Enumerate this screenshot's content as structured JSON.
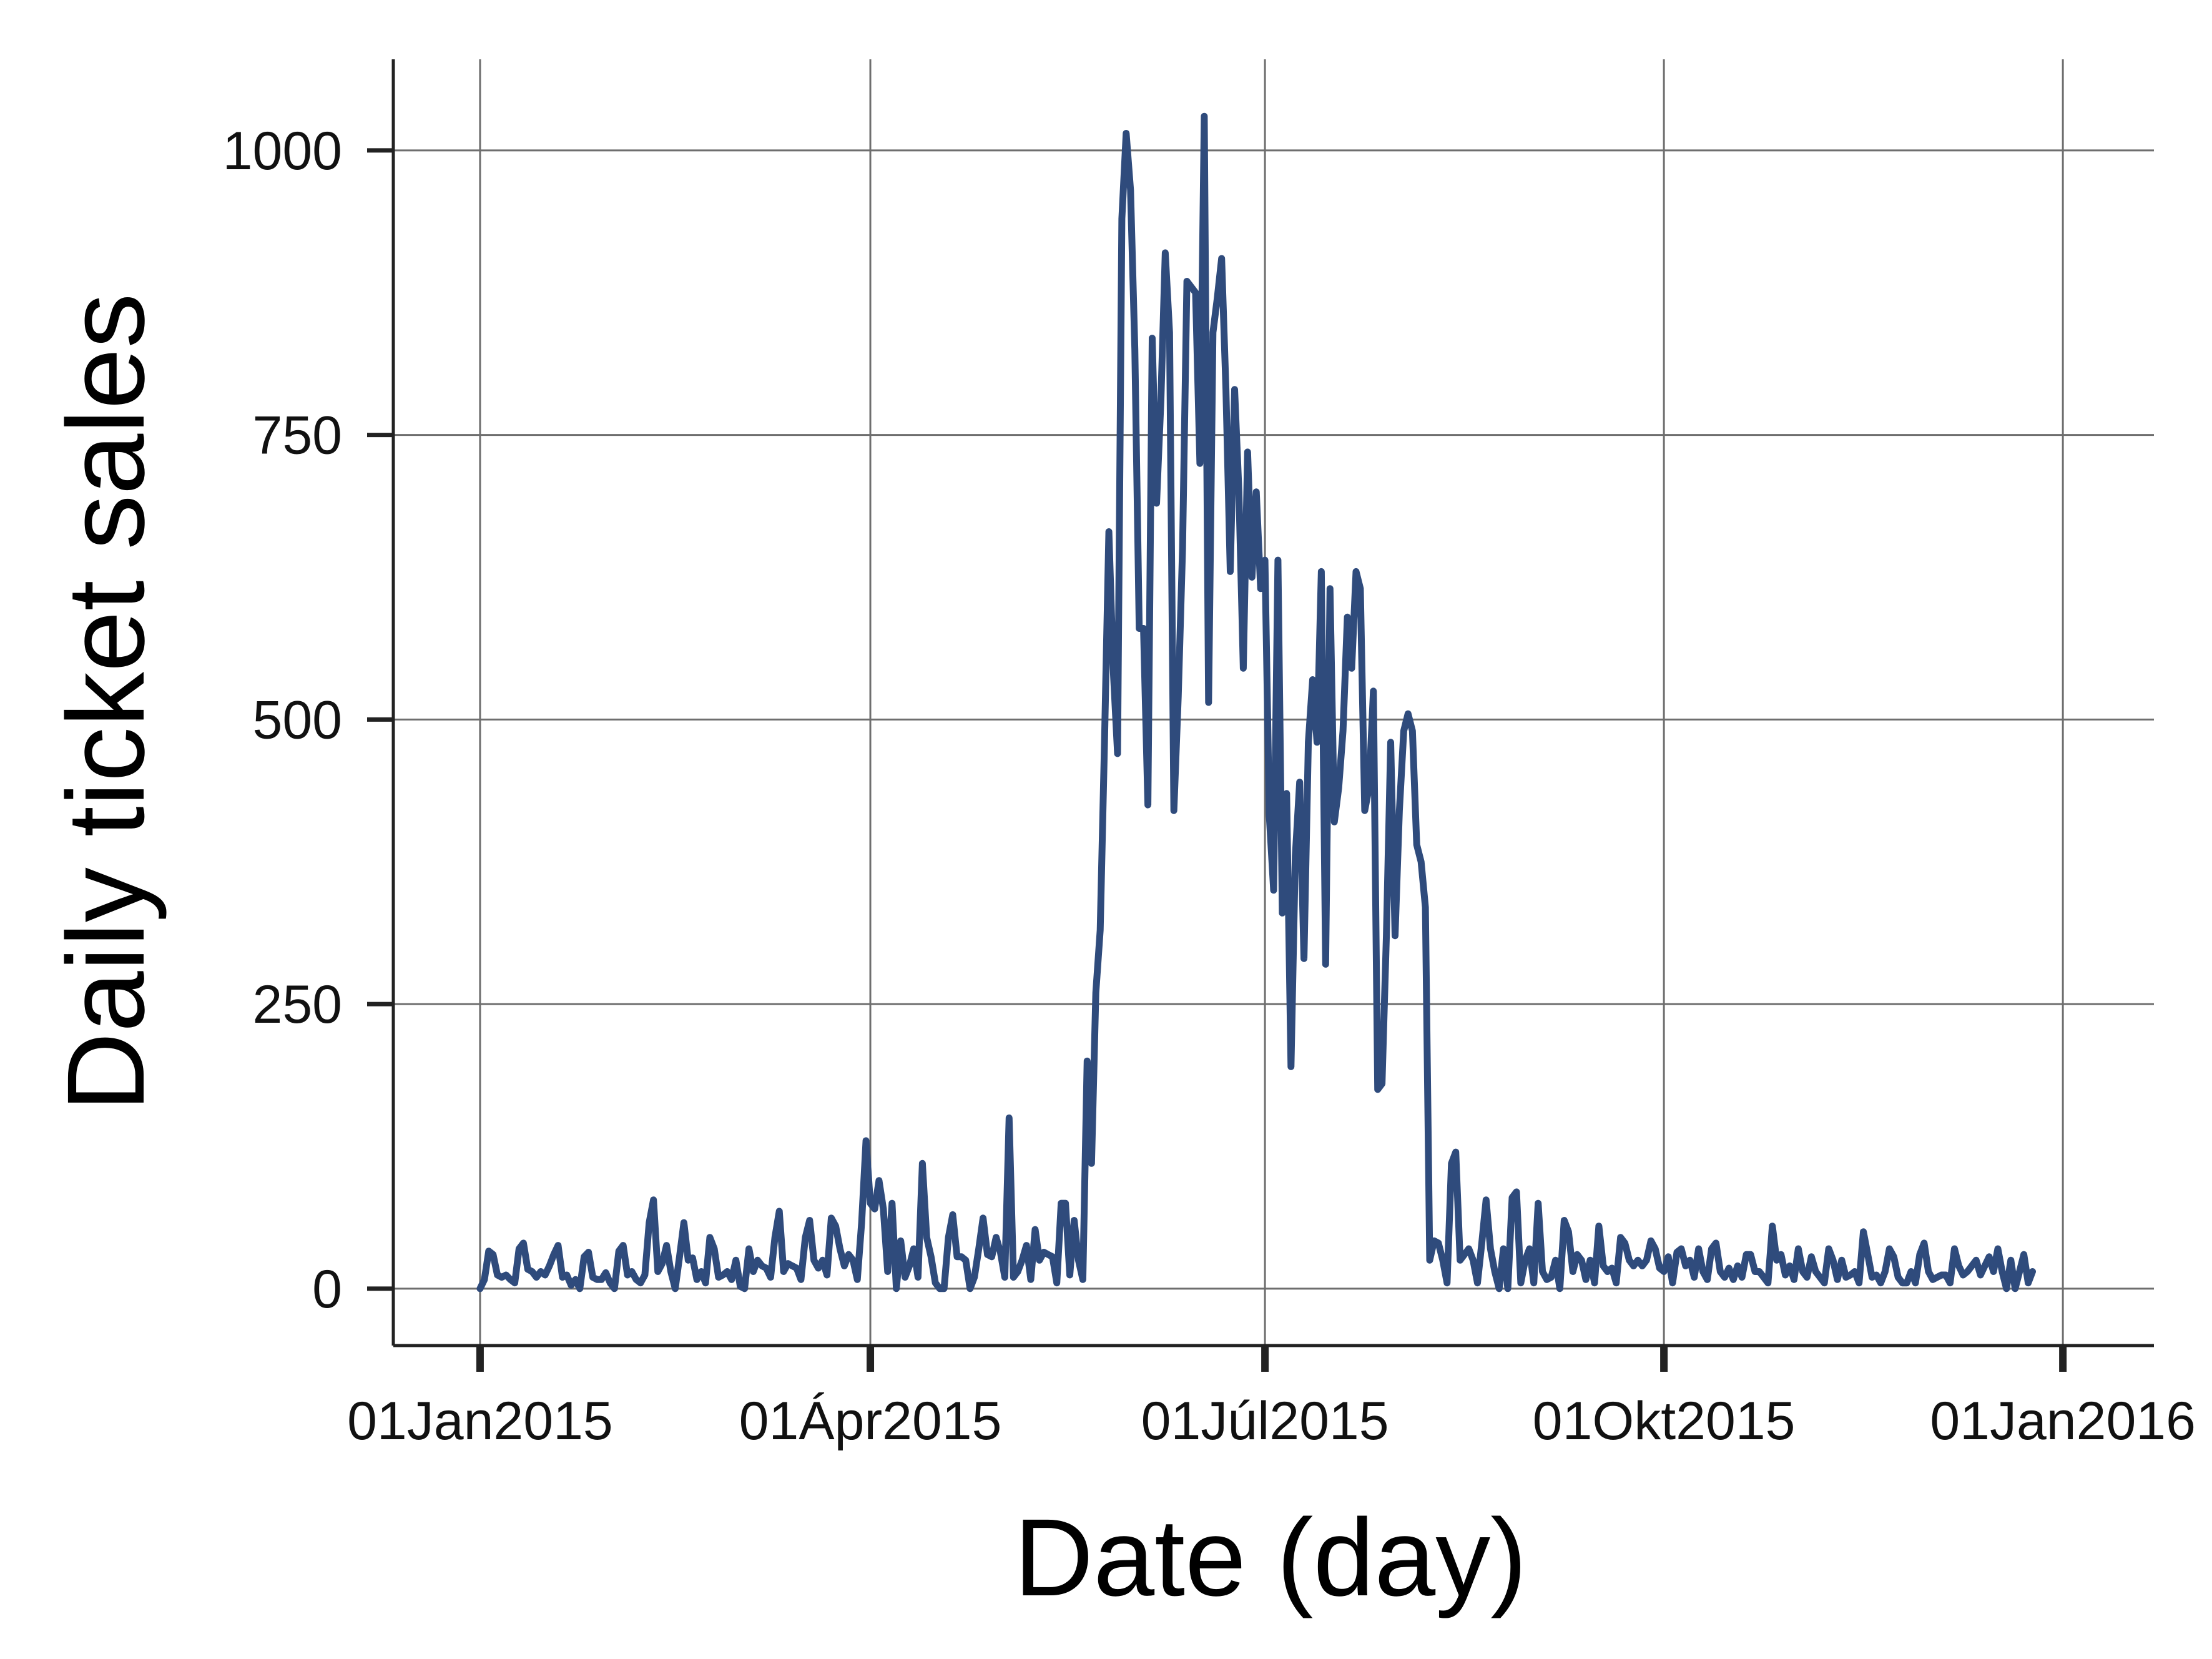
{
  "chart_data": {
    "type": "line",
    "title": "",
    "xlabel": "Date (day)",
    "ylabel": "Daily ticket sales",
    "ylim": [
      -50,
      1080
    ],
    "xlim": [
      "2014-12-12",
      "2016-01-22"
    ],
    "grid": true,
    "legend": "none",
    "y_ticks": [
      0,
      250,
      500,
      750,
      1000
    ],
    "y_tick_labels": [
      "0",
      "250",
      "500",
      "750",
      "1000"
    ],
    "x_ticks": [
      "2015-01-01",
      "2015-04-01",
      "2015-07-01",
      "2015-10-01",
      "2016-01-01"
    ],
    "x_tick_labels": [
      "01Jan2015",
      "01Ápr2015",
      "01Júl2015",
      "01Okt2015",
      "01Jan2016"
    ],
    "colors": {
      "line": "#2f4b7c",
      "grid": "#6e6e6e",
      "axis": "#222222",
      "background": "#ffffff"
    },
    "series": [
      {
        "x_start": "2015-01-01",
        "x_step_days": 1,
        "values": [
          0,
          8,
          33,
          30,
          12,
          10,
          12,
          8,
          5,
          35,
          40,
          17,
          15,
          10,
          15,
          12,
          20,
          30,
          38,
          10,
          12,
          3,
          8,
          0,
          28,
          32,
          10,
          8,
          8,
          14,
          5,
          0,
          33,
          38,
          12,
          15,
          8,
          5,
          12,
          58,
          78,
          15,
          22,
          38,
          15,
          0,
          28,
          58,
          25,
          27,
          8,
          15,
          5,
          45,
          35,
          10,
          12,
          15,
          8,
          25,
          2,
          0,
          35,
          15,
          25,
          20,
          18,
          10,
          45,
          68,
          15,
          22,
          20,
          18,
          8,
          45,
          60,
          25,
          18,
          25,
          12,
          62,
          55,
          35,
          20,
          30,
          25,
          8,
          58,
          130,
          75,
          70,
          95,
          70,
          15,
          75,
          0,
          42,
          10,
          20,
          35,
          10,
          110,
          45,
          28,
          5,
          0,
          0,
          45,
          65,
          28,
          28,
          25,
          0,
          10,
          35,
          62,
          30,
          28,
          45,
          32,
          10,
          150,
          10,
          15,
          25,
          38,
          8,
          52,
          25,
          32,
          30,
          28,
          5,
          75,
          75,
          12,
          60,
          25,
          8,
          200,
          110,
          260,
          315,
          480,
          665,
          545,
          470,
          940,
          1015,
          965,
          825,
          580,
          580,
          425,
          835,
          690,
          780,
          910,
          840,
          420,
          520,
          650,
          885,
          880,
          875,
          725,
          1030,
          515,
          840,
          870,
          905,
          790,
          630,
          790,
          700,
          545,
          735,
          625,
          700,
          615,
          640,
          415,
          350,
          640,
          330,
          435,
          195,
          380,
          445,
          290,
          480,
          535,
          480,
          630,
          285,
          615,
          410,
          440,
          490,
          590,
          545,
          630,
          615,
          420,
          440,
          525,
          175,
          180,
          310,
          480,
          310,
          420,
          490,
          505,
          490,
          390,
          375,
          335,
          25,
          42,
          40,
          25,
          5,
          110,
          120,
          25,
          30,
          35,
          25,
          5,
          40,
          78,
          35,
          15,
          0,
          35,
          0,
          80,
          85,
          5,
          25,
          35,
          5,
          75,
          15,
          8,
          10,
          25,
          0,
          60,
          50,
          15,
          30,
          25,
          8,
          25,
          5,
          55,
          20,
          15,
          18,
          5,
          45,
          40,
          25,
          20,
          25,
          20,
          25,
          42,
          35,
          18,
          15,
          28,
          5,
          32,
          35,
          20,
          25,
          10,
          35,
          15,
          8,
          35,
          40,
          15,
          10,
          18,
          8,
          20,
          10,
          30,
          30,
          15,
          15,
          10,
          5,
          55,
          25,
          30,
          12,
          20,
          8,
          35,
          15,
          10,
          28,
          15,
          10,
          5,
          35,
          25,
          8,
          25,
          10,
          12,
          15,
          5,
          50,
          30,
          10,
          12,
          5,
          15,
          35,
          28,
          10,
          5,
          5,
          15,
          5,
          30,
          40,
          15,
          8,
          10,
          12,
          12,
          5,
          35,
          20,
          12,
          15,
          20,
          25,
          12,
          20,
          28,
          15,
          35,
          15,
          0,
          25,
          0,
          15,
          30,
          5,
          15
        ]
      }
    ]
  }
}
